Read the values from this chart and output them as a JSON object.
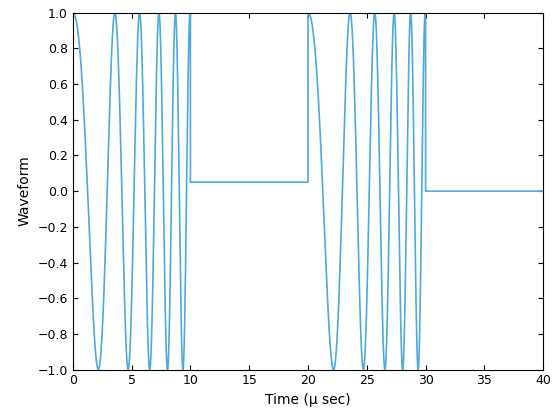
{
  "line_color": "#4DAADC",
  "line_width": 1.2,
  "xlabel": "Time (μ sec)",
  "ylabel": "Waveform",
  "xlim": [
    0,
    40
  ],
  "ylim": [
    -1,
    1
  ],
  "xticks": [
    0,
    5,
    10,
    15,
    20,
    25,
    30,
    35,
    40
  ],
  "yticks": [
    -1,
    -0.8,
    -0.6,
    -0.4,
    -0.2,
    0,
    0.2,
    0.4,
    0.6,
    0.8,
    1
  ],
  "background_color": "#ffffff",
  "flat1_level": 0.05,
  "flat2_level": 0.0,
  "f0": 0.155,
  "f1": 0.85,
  "burst_duration": 10.0,
  "dt": 0.0002,
  "figsize": [
    5.6,
    4.2
  ],
  "dpi": 100
}
